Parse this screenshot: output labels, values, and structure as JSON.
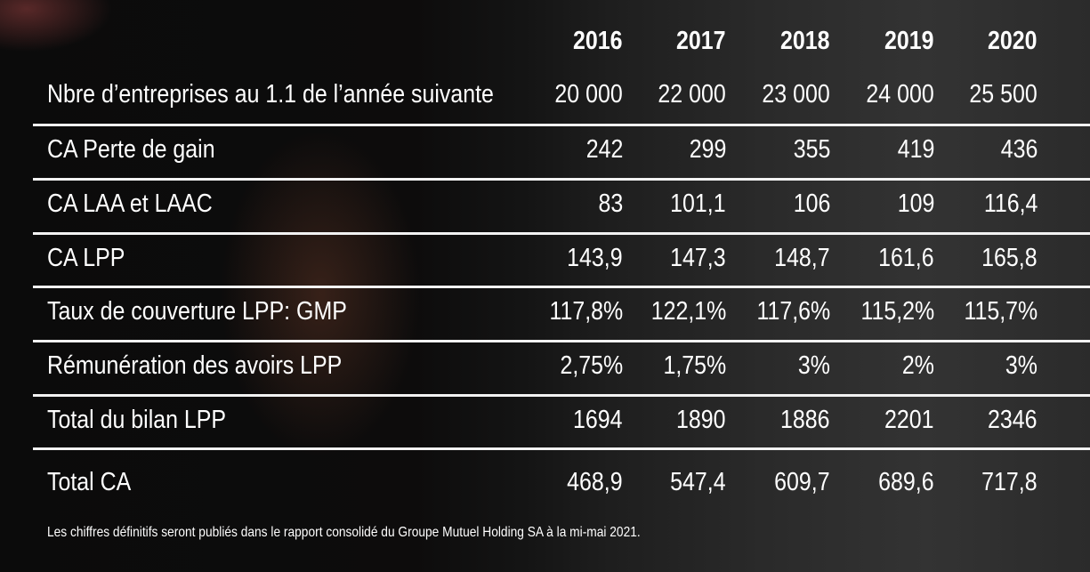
{
  "chart_data": {
    "type": "table",
    "columns": [
      "2016",
      "2017",
      "2018",
      "2019",
      "2020"
    ],
    "rows": [
      {
        "label": "Nbre d’entreprises au 1.1 de l’année suivante",
        "values": [
          "20 000",
          "22 000",
          "23 000",
          "24 000",
          "25 500"
        ]
      },
      {
        "label": "CA Perte de gain",
        "values": [
          "242",
          "299",
          "355",
          "419",
          "436"
        ]
      },
      {
        "label": "CA LAA et LAAC",
        "values": [
          "83",
          "101,1",
          "106",
          "109",
          "116,4"
        ]
      },
      {
        "label": "CA LPP",
        "values": [
          "143,9",
          "147,3",
          "148,7",
          "161,6",
          "165,8"
        ]
      },
      {
        "label": "Taux de couverture LPP: GMP",
        "values": [
          "117,8%",
          "122,1%",
          "117,6%",
          "115,2%",
          "115,7%"
        ]
      },
      {
        "label": "Rémunération des avoirs LPP",
        "values": [
          "2,75%",
          "1,75%",
          "3%",
          "2%",
          "3%"
        ]
      },
      {
        "label": "Total du bilan LPP",
        "values": [
          "1694",
          "1890",
          "1886",
          "2201",
          "2346"
        ]
      },
      {
        "label": "Total CA",
        "values": [
          "468,9",
          "547,4",
          "609,7",
          "689,6",
          "717,8"
        ]
      }
    ],
    "footnote": "Les chiffres définitifs seront publiés dans le rapport consolidé du Groupe Mutuel Holding SA à la mi-mai 2021."
  },
  "colors": {
    "text": "#ffffff",
    "rule": "#f2f2f2",
    "background": "#111111"
  }
}
